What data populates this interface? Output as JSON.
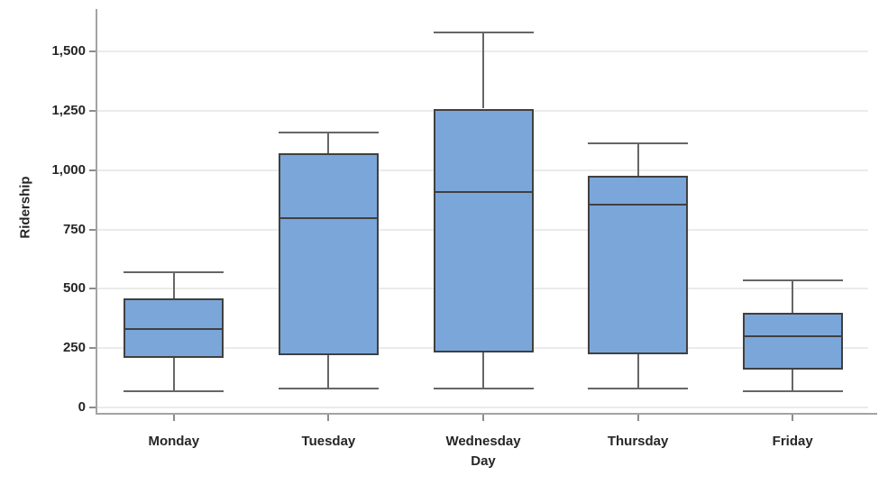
{
  "chart_data": {
    "type": "boxplot",
    "title": "",
    "xlabel": "Day",
    "ylabel": "Ridership",
    "categories": [
      "Monday",
      "Tuesday",
      "Wednesday",
      "Thursday",
      "Friday"
    ],
    "boxes": [
      {
        "category": "Monday",
        "min": 70,
        "q1": 210,
        "median": 330,
        "q3": 460,
        "max": 570
      },
      {
        "category": "Tuesday",
        "min": 80,
        "q1": 220,
        "median": 800,
        "q3": 1070,
        "max": 1160
      },
      {
        "category": "Wednesday",
        "min": 80,
        "q1": 230,
        "median": 910,
        "q3": 1260,
        "max": 1580
      },
      {
        "category": "Thursday",
        "min": 80,
        "q1": 225,
        "median": 855,
        "q3": 975,
        "max": 1115
      },
      {
        "category": "Friday",
        "min": 70,
        "q1": 160,
        "median": 300,
        "q3": 400,
        "max": 535
      }
    ],
    "y_axis": {
      "min": 0,
      "max": 1680,
      "ticks": [
        0,
        250,
        500,
        750,
        1000,
        1250,
        1500
      ],
      "tick_labels": [
        "0",
        "250",
        "500",
        "750",
        "1,000",
        "1,250",
        "1,500"
      ]
    },
    "grid": "horizontal",
    "legend": "none",
    "colors": {
      "box_fill": "#7BA6DA",
      "box_border": "#404040",
      "median": "#404040",
      "whisker": "#666666",
      "gridline": "#EBEBEB",
      "axis_line": "#A3A3A3",
      "tick_mark": "#8C8C8C",
      "label_text": "#262626",
      "background": "#FFFFFF"
    }
  }
}
